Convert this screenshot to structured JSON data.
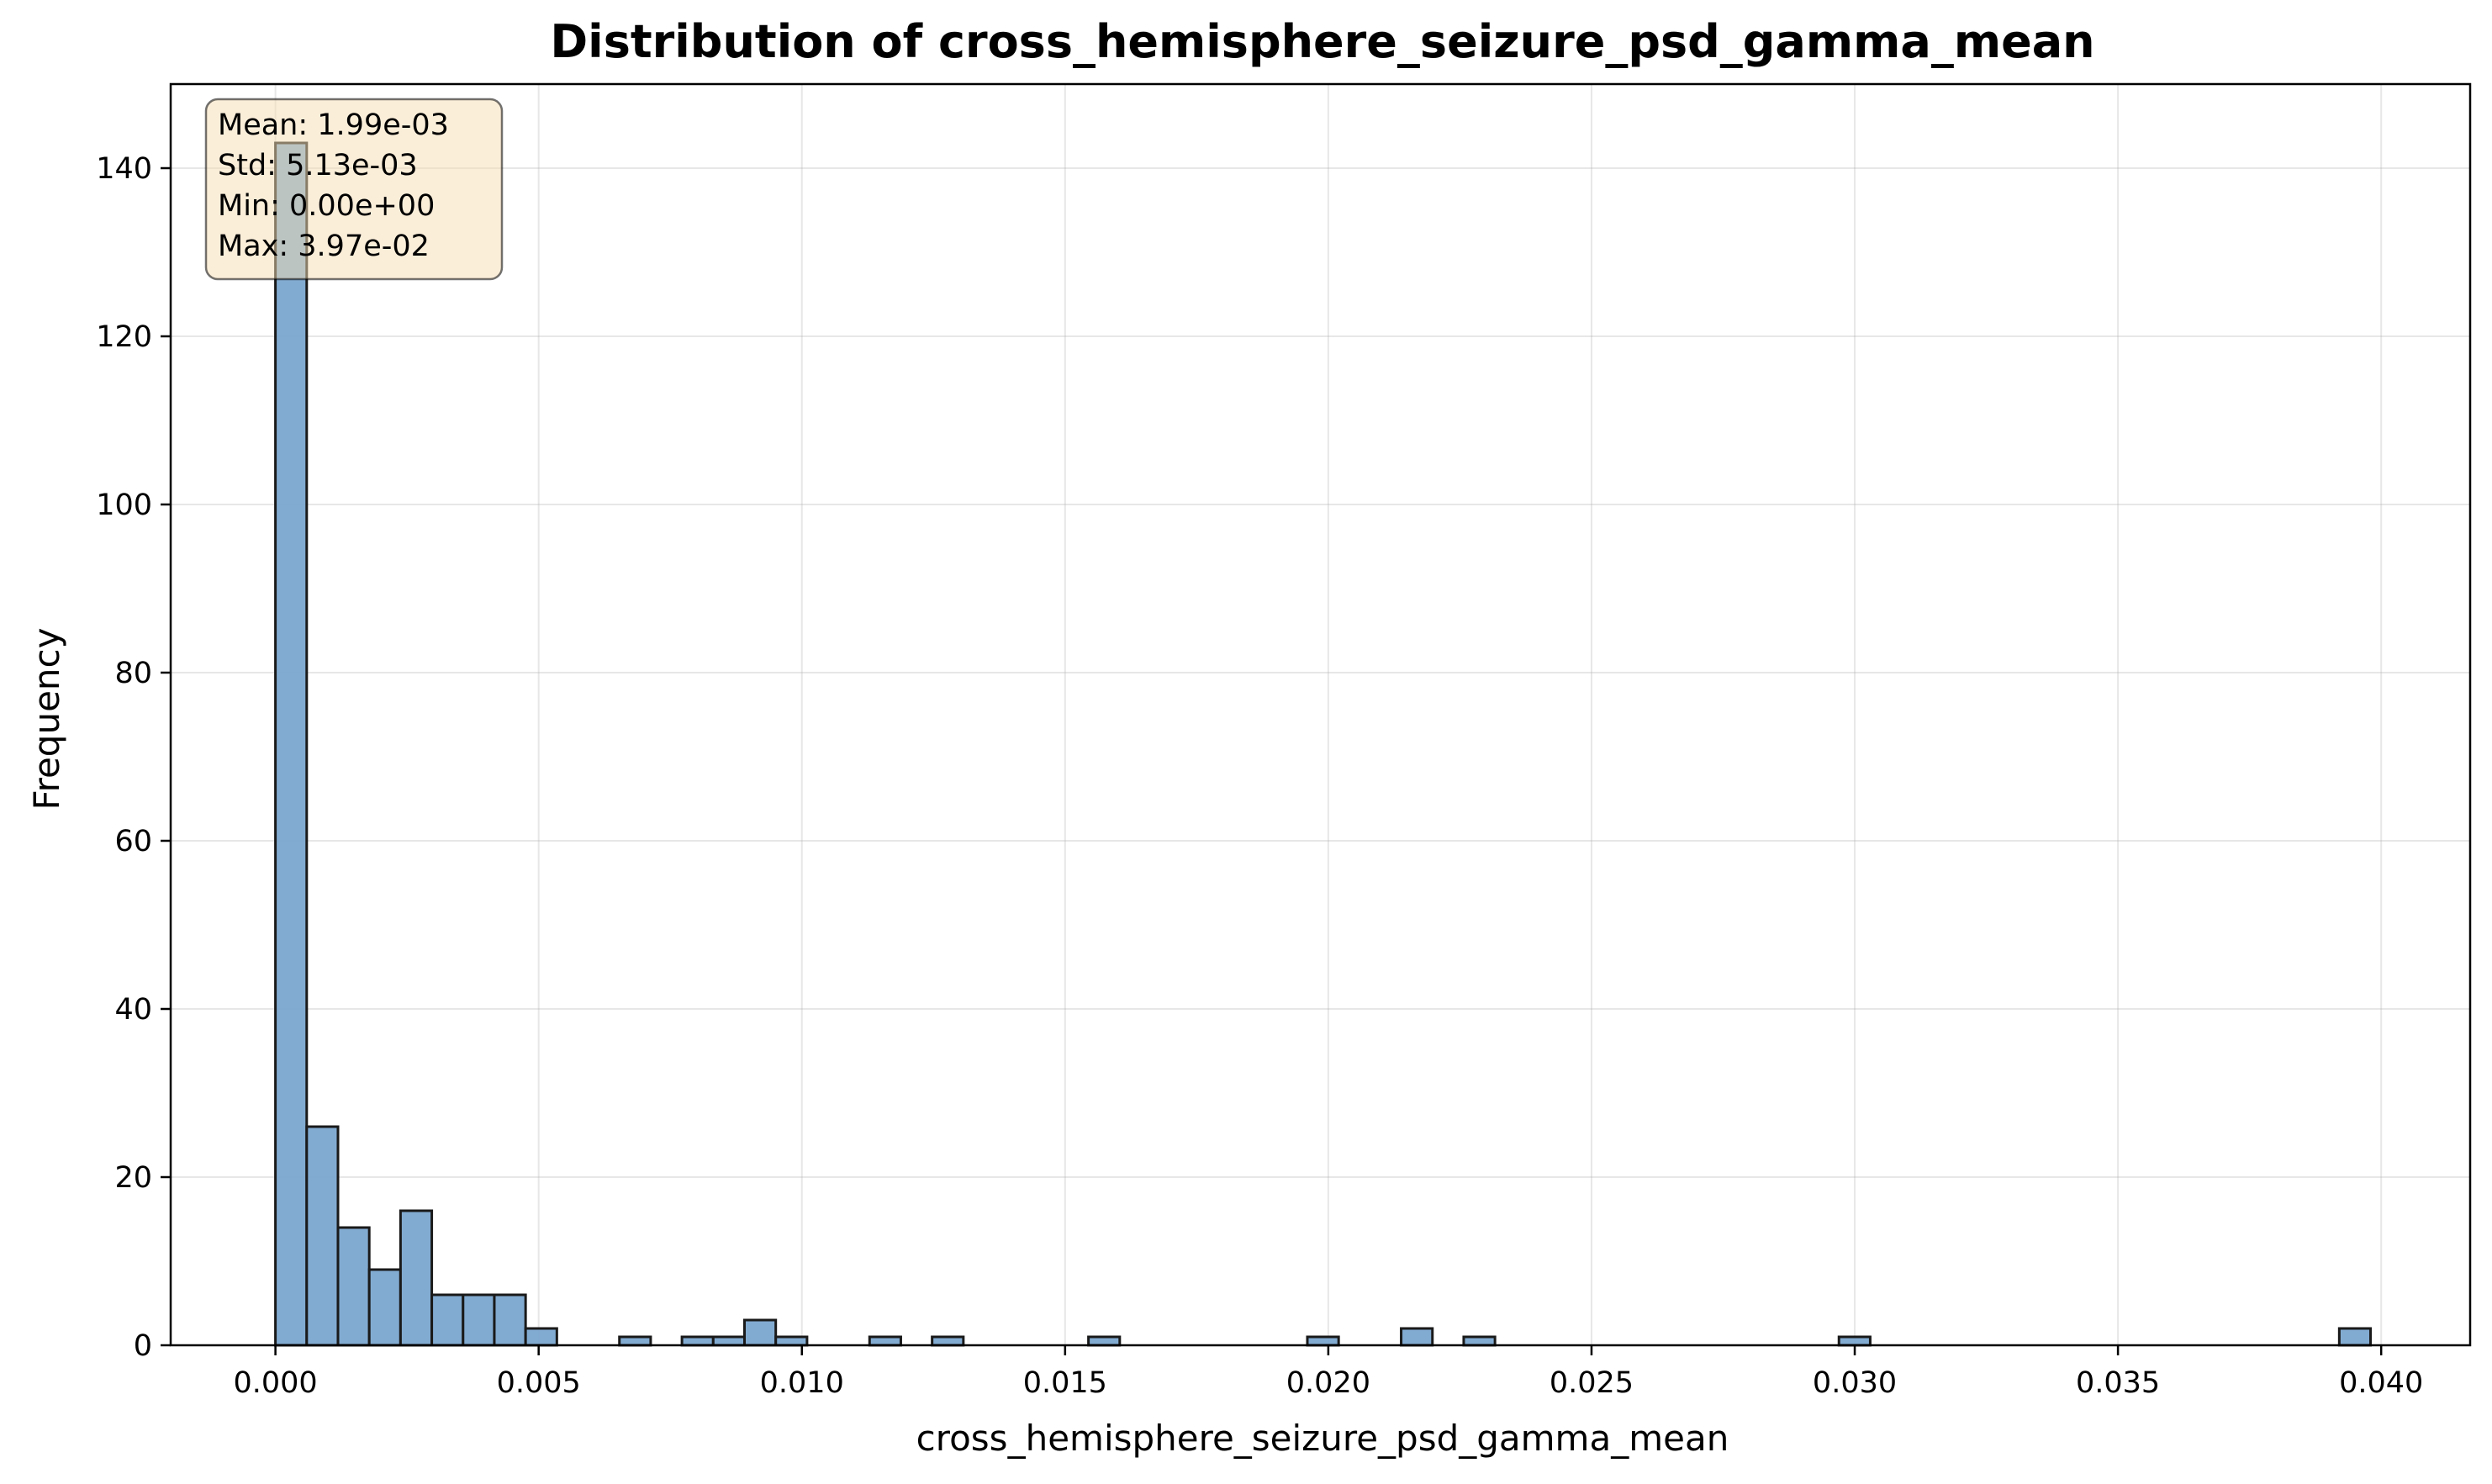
{
  "chart_data": {
    "type": "bar",
    "histogram": true,
    "title": "Distribution of cross_hemisphere_seizure_psd_gamma_mean",
    "xlabel": "cross_hemisphere_seizure_psd_gamma_mean",
    "ylabel": "Frequency",
    "xlim": [
      -0.00199,
      0.04169
    ],
    "ylim": [
      0,
      150
    ],
    "bin_start": 0.0,
    "bin_width": 0.000594,
    "x_ticks": [
      0.0,
      0.005,
      0.01,
      0.015,
      0.02,
      0.025,
      0.03,
      0.035,
      0.04
    ],
    "x_tick_labels": [
      "0.000",
      "0.005",
      "0.010",
      "0.015",
      "0.020",
      "0.025",
      "0.030",
      "0.035",
      "0.040"
    ],
    "y_ticks": [
      0,
      20,
      40,
      60,
      80,
      100,
      120,
      140
    ],
    "y_tick_labels": [
      "0",
      "20",
      "40",
      "60",
      "80",
      "100",
      "120",
      "140"
    ],
    "values": [
      143,
      26,
      14,
      9,
      16,
      6,
      6,
      6,
      2,
      0,
      0,
      1,
      0,
      1,
      1,
      3,
      1,
      0,
      0,
      1,
      0,
      1,
      0,
      0,
      0,
      0,
      1,
      0,
      0,
      0,
      0,
      0,
      0,
      1,
      0,
      0,
      2,
      0,
      1,
      0,
      0,
      0,
      0,
      0,
      0,
      0,
      0,
      0,
      0,
      0,
      1,
      0,
      0,
      0,
      0,
      0,
      0,
      0,
      0,
      0,
      0,
      0,
      0,
      0,
      0,
      0,
      2
    ],
    "grid": true,
    "bar_color": "#7ba6cf",
    "bar_edge_color": "#1a1a1a",
    "stats_box": {
      "lines": [
        "Mean: 1.99e-03",
        "Std: 5.13e-03",
        "Min: 0.00e+00",
        "Max: 3.97e-02"
      ],
      "background": "#f5deb3",
      "placement": "top-left"
    }
  }
}
